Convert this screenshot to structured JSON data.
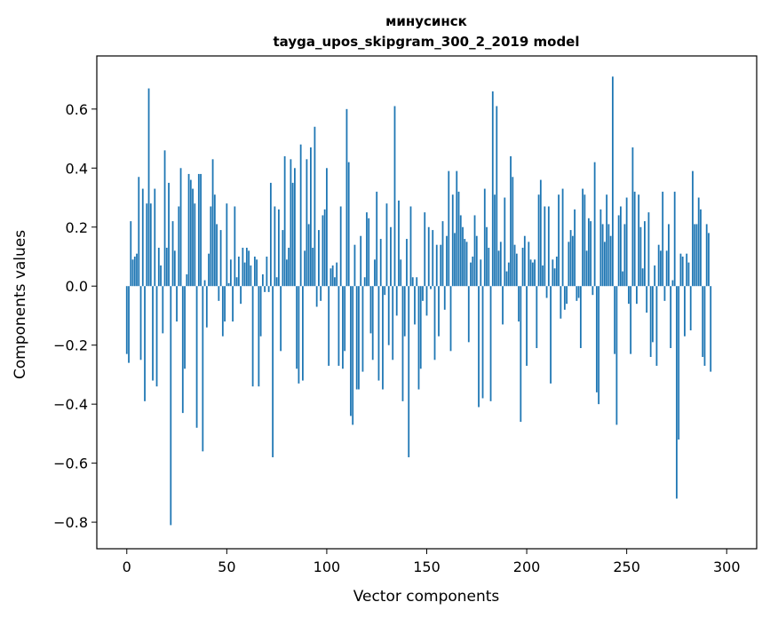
{
  "chart_data": {
    "type": "bar",
    "title": "минусинск",
    "subtitle": "tayga_upos_skipgram_300_2_2019 model",
    "xlabel": "Vector components",
    "ylabel": "Components values",
    "xlim": [
      -15,
      315
    ],
    "ylim": [
      -0.89,
      0.78
    ],
    "xticks": [
      0,
      50,
      100,
      150,
      200,
      250,
      300
    ],
    "xtick_labels": [
      "0",
      "50",
      "100",
      "150",
      "200",
      "250",
      "300"
    ],
    "yticks": [
      -0.8,
      -0.6,
      -0.4,
      -0.2,
      0.0,
      0.2,
      0.4,
      0.6
    ],
    "ytick_labels": [
      "−0.8",
      "−0.6",
      "−0.4",
      "−0.2",
      "0.0",
      "0.2",
      "0.4",
      "0.6"
    ],
    "bar_color": "#1f77b4",
    "grid": false,
    "values": [
      -0.23,
      -0.26,
      0.22,
      0.09,
      0.1,
      0.11,
      0.37,
      -0.25,
      0.33,
      -0.39,
      0.28,
      0.67,
      0.28,
      -0.32,
      0.33,
      -0.34,
      0.13,
      0.07,
      -0.16,
      0.46,
      0.13,
      0.35,
      -0.81,
      0.22,
      0.12,
      -0.12,
      0.27,
      0.4,
      -0.43,
      -0.28,
      0.04,
      0.38,
      0.36,
      0.33,
      0.28,
      -0.48,
      0.38,
      0.38,
      -0.56,
      0.02,
      -0.14,
      0.11,
      0.27,
      0.43,
      0.31,
      0.21,
      -0.05,
      0.19,
      -0.17,
      -0.12,
      0.28,
      0.01,
      0.09,
      -0.12,
      0.27,
      0.03,
      0.1,
      -0.06,
      0.13,
      0.08,
      0.13,
      0.12,
      0.07,
      -0.34,
      0.1,
      0.09,
      -0.34,
      -0.17,
      0.04,
      -0.02,
      0.1,
      -0.02,
      0.35,
      -0.58,
      0.27,
      0.03,
      0.26,
      -0.22,
      0.19,
      0.44,
      0.09,
      0.13,
      0.43,
      0.35,
      0.4,
      -0.28,
      -0.33,
      0.48,
      -0.32,
      0.12,
      0.43,
      0.21,
      0.47,
      0.13,
      0.54,
      -0.07,
      0.19,
      -0.05,
      0.24,
      0.26,
      0.4,
      -0.27,
      0.06,
      0.07,
      0.03,
      0.08,
      -0.27,
      0.27,
      -0.28,
      -0.22,
      0.6,
      0.42,
      -0.44,
      -0.47,
      0.14,
      -0.35,
      -0.35,
      0.17,
      -0.29,
      0.03,
      0.25,
      0.23,
      -0.16,
      -0.25,
      0.09,
      0.32,
      -0.32,
      0.16,
      -0.35,
      -0.03,
      0.28,
      -0.2,
      0.2,
      -0.25,
      0.61,
      -0.1,
      0.29,
      0.09,
      -0.39,
      -0.17,
      0.16,
      -0.58,
      0.27,
      0.03,
      -0.13,
      0.03,
      -0.35,
      -0.28,
      -0.05,
      0.25,
      -0.1,
      0.2,
      -0.01,
      0.19,
      -0.25,
      0.14,
      -0.17,
      0.14,
      0.22,
      -0.08,
      0.17,
      0.39,
      -0.22,
      0.31,
      0.18,
      0.39,
      0.32,
      0.24,
      0.2,
      0.16,
      0.15,
      -0.19,
      0.08,
      0.1,
      0.24,
      0.17,
      -0.41,
      0.09,
      -0.38,
      0.33,
      0.2,
      0.13,
      -0.39,
      0.66,
      0.31,
      0.61,
      0.12,
      0.15,
      -0.13,
      0.3,
      0.05,
      0.08,
      0.44,
      0.37,
      0.14,
      0.11,
      -0.12,
      -0.46,
      0.13,
      0.17,
      -0.27,
      0.15,
      0.09,
      0.08,
      0.09,
      -0.21,
      0.31,
      0.36,
      0.07,
      0.27,
      -0.04,
      0.27,
      -0.33,
      0.09,
      0.06,
      0.1,
      0.31,
      -0.11,
      0.33,
      -0.08,
      -0.06,
      0.15,
      0.19,
      0.17,
      0.26,
      -0.05,
      -0.04,
      -0.21,
      0.33,
      0.31,
      0.12,
      0.23,
      0.22,
      -0.03,
      0.42,
      -0.36,
      -0.4,
      0.26,
      0.21,
      0.15,
      0.31,
      0.21,
      0.17,
      0.71,
      -0.23,
      -0.47,
      0.24,
      0.27,
      0.05,
      0.21,
      0.3,
      -0.06,
      -0.23,
      0.47,
      0.32,
      -0.06,
      0.31,
      0.2,
      0.06,
      0.22,
      -0.09,
      0.25,
      -0.24,
      -0.19,
      0.07,
      -0.27,
      0.14,
      0.12,
      0.32,
      -0.05,
      0.12,
      0.21,
      -0.21,
      0.02,
      0.32,
      -0.72,
      -0.52,
      0.11,
      0.1,
      -0.17,
      0.11,
      0.08,
      -0.15,
      0.39,
      0.21,
      0.21,
      0.3,
      0.26,
      -0.24,
      -0.27,
      0.21,
      0.18,
      -0.29
    ]
  }
}
